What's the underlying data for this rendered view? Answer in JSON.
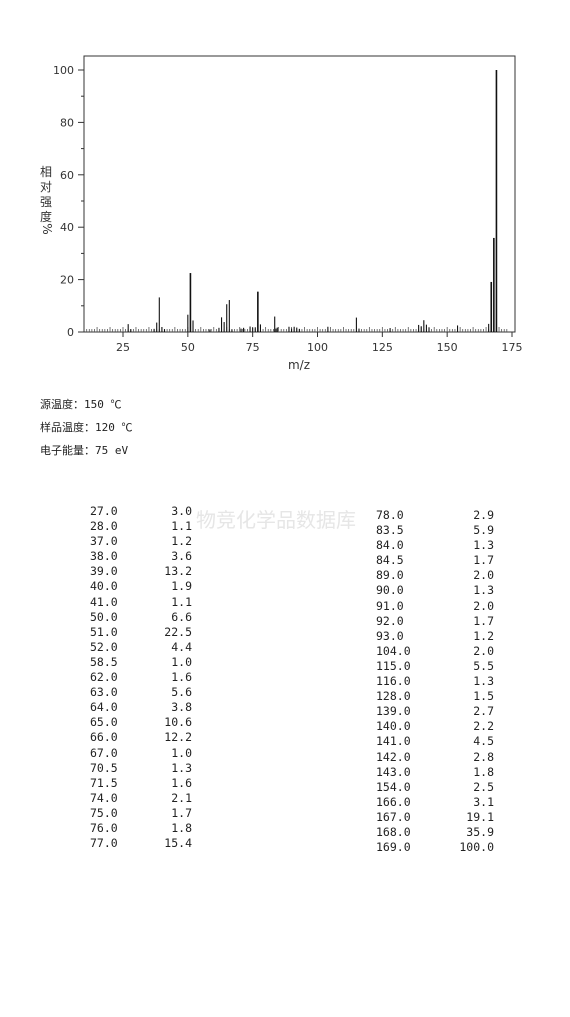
{
  "chart_data": {
    "type": "bar",
    "xlabel": "m/z",
    "ylabel": "相对强度 %",
    "xlim": [
      10,
      175
    ],
    "ylim": [
      0,
      100
    ],
    "x_ticks": [
      25,
      50,
      75,
      100,
      125,
      150,
      175
    ],
    "y_ticks": [
      0,
      20,
      40,
      60,
      80,
      100
    ],
    "peaks": [
      {
        "mz": 27.0,
        "intensity": 3.0
      },
      {
        "mz": 28.0,
        "intensity": 1.1
      },
      {
        "mz": 37.0,
        "intensity": 1.2
      },
      {
        "mz": 38.0,
        "intensity": 3.6
      },
      {
        "mz": 39.0,
        "intensity": 13.2
      },
      {
        "mz": 40.0,
        "intensity": 1.9
      },
      {
        "mz": 41.0,
        "intensity": 1.1
      },
      {
        "mz": 50.0,
        "intensity": 6.6
      },
      {
        "mz": 51.0,
        "intensity": 22.5
      },
      {
        "mz": 52.0,
        "intensity": 4.4
      },
      {
        "mz": 58.5,
        "intensity": 1.0
      },
      {
        "mz": 62.0,
        "intensity": 1.6
      },
      {
        "mz": 63.0,
        "intensity": 5.6
      },
      {
        "mz": 64.0,
        "intensity": 3.8
      },
      {
        "mz": 65.0,
        "intensity": 10.6
      },
      {
        "mz": 66.0,
        "intensity": 12.2
      },
      {
        "mz": 67.0,
        "intensity": 1.0
      },
      {
        "mz": 70.5,
        "intensity": 1.3
      },
      {
        "mz": 71.5,
        "intensity": 1.6
      },
      {
        "mz": 74.0,
        "intensity": 2.1
      },
      {
        "mz": 75.0,
        "intensity": 1.7
      },
      {
        "mz": 76.0,
        "intensity": 1.8
      },
      {
        "mz": 77.0,
        "intensity": 15.4
      },
      {
        "mz": 78.0,
        "intensity": 2.9
      },
      {
        "mz": 83.5,
        "intensity": 5.9
      },
      {
        "mz": 84.0,
        "intensity": 1.3
      },
      {
        "mz": 84.5,
        "intensity": 1.7
      },
      {
        "mz": 89.0,
        "intensity": 2.0
      },
      {
        "mz": 90.0,
        "intensity": 1.3
      },
      {
        "mz": 91.0,
        "intensity": 2.0
      },
      {
        "mz": 92.0,
        "intensity": 1.7
      },
      {
        "mz": 93.0,
        "intensity": 1.2
      },
      {
        "mz": 104.0,
        "intensity": 2.0
      },
      {
        "mz": 115.0,
        "intensity": 5.5
      },
      {
        "mz": 116.0,
        "intensity": 1.3
      },
      {
        "mz": 128.0,
        "intensity": 1.5
      },
      {
        "mz": 139.0,
        "intensity": 2.7
      },
      {
        "mz": 140.0,
        "intensity": 2.2
      },
      {
        "mz": 141.0,
        "intensity": 4.5
      },
      {
        "mz": 142.0,
        "intensity": 2.8
      },
      {
        "mz": 143.0,
        "intensity": 1.8
      },
      {
        "mz": 154.0,
        "intensity": 2.5
      },
      {
        "mz": 166.0,
        "intensity": 3.1
      },
      {
        "mz": 167.0,
        "intensity": 19.1
      },
      {
        "mz": 168.0,
        "intensity": 35.9
      },
      {
        "mz": 169.0,
        "intensity": 100.0
      }
    ],
    "grid": false,
    "legend": "none"
  },
  "conditions": [
    "源温度：150 ℃",
    "样品温度：120 ℃",
    "电子能量：75 eV"
  ],
  "watermark": "物竞化学品数据库",
  "table_left": [
    [
      "27.0",
      "3.0"
    ],
    [
      "28.0",
      "1.1"
    ],
    [
      "37.0",
      "1.2"
    ],
    [
      "38.0",
      "3.6"
    ],
    [
      "39.0",
      "13.2"
    ],
    [
      "40.0",
      "1.9"
    ],
    [
      "41.0",
      "1.1"
    ],
    [
      "50.0",
      "6.6"
    ],
    [
      "51.0",
      "22.5"
    ],
    [
      "52.0",
      "4.4"
    ],
    [
      "58.5",
      "1.0"
    ],
    [
      "62.0",
      "1.6"
    ],
    [
      "63.0",
      "5.6"
    ],
    [
      "64.0",
      "3.8"
    ],
    [
      "65.0",
      "10.6"
    ],
    [
      "66.0",
      "12.2"
    ],
    [
      "67.0",
      "1.0"
    ],
    [
      "70.5",
      "1.3"
    ],
    [
      "71.5",
      "1.6"
    ],
    [
      "74.0",
      "2.1"
    ],
    [
      "75.0",
      "1.7"
    ],
    [
      "76.0",
      "1.8"
    ],
    [
      "77.0",
      "15.4"
    ]
  ],
  "table_right": [
    [
      "78.0",
      "2.9"
    ],
    [
      "83.5",
      "5.9"
    ],
    [
      "84.0",
      "1.3"
    ],
    [
      "84.5",
      "1.7"
    ],
    [
      "89.0",
      "2.0"
    ],
    [
      "90.0",
      "1.3"
    ],
    [
      "91.0",
      "2.0"
    ],
    [
      "92.0",
      "1.7"
    ],
    [
      "93.0",
      "1.2"
    ],
    [
      "104.0",
      "2.0"
    ],
    [
      "115.0",
      "5.5"
    ],
    [
      "116.0",
      "1.3"
    ],
    [
      "128.0",
      "1.5"
    ],
    [
      "139.0",
      "2.7"
    ],
    [
      "140.0",
      "2.2"
    ],
    [
      "141.0",
      "4.5"
    ],
    [
      "142.0",
      "2.8"
    ],
    [
      "143.0",
      "1.8"
    ],
    [
      "154.0",
      "2.5"
    ],
    [
      "166.0",
      "3.1"
    ],
    [
      "167.0",
      "19.1"
    ],
    [
      "168.0",
      "35.9"
    ],
    [
      "169.0",
      "100.0"
    ]
  ]
}
